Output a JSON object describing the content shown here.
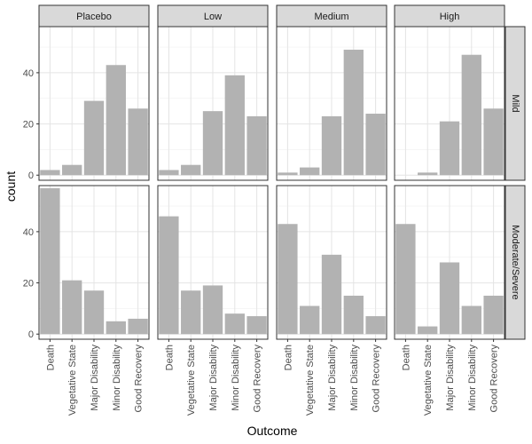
{
  "chart_data": {
    "type": "bar",
    "xlabel": "Outcome",
    "ylabel": "count",
    "categories": [
      "Death",
      "Vegetative State",
      "Major Disability",
      "Minor Disability",
      "Good Recovery"
    ],
    "column_facets": [
      "Placebo",
      "Low",
      "Medium",
      "High"
    ],
    "row_facets": [
      "Mild",
      "Moderate/Severe"
    ],
    "ylim": [
      -2,
      58
    ],
    "yticks": [
      0,
      20,
      40
    ],
    "grid": true,
    "bar_color": "#b2b2b2",
    "strip_color": "#d9d9d9",
    "panels": [
      {
        "column": "Placebo",
        "row": "Mild",
        "values": [
          2,
          4,
          29,
          43,
          26
        ]
      },
      {
        "column": "Low",
        "row": "Mild",
        "values": [
          2,
          4,
          25,
          39,
          23
        ]
      },
      {
        "column": "Medium",
        "row": "Mild",
        "values": [
          1,
          3,
          23,
          49,
          24
        ]
      },
      {
        "column": "High",
        "row": "Mild",
        "values": [
          0,
          1,
          21,
          47,
          26
        ]
      },
      {
        "column": "Placebo",
        "row": "Moderate/Severe",
        "values": [
          57,
          21,
          17,
          5,
          6
        ]
      },
      {
        "column": "Low",
        "row": "Moderate/Severe",
        "values": [
          46,
          17,
          19,
          8,
          7
        ]
      },
      {
        "column": "Medium",
        "row": "Moderate/Severe",
        "values": [
          43,
          11,
          31,
          15,
          7
        ]
      },
      {
        "column": "High",
        "row": "Moderate/Severe",
        "values": [
          43,
          3,
          28,
          11,
          15
        ]
      }
    ]
  }
}
